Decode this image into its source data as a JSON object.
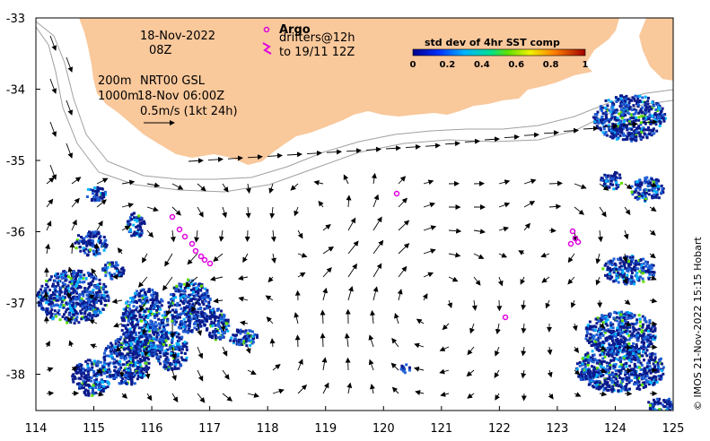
{
  "map": {
    "date_label": "18-Nov-2022",
    "time_label": "08Z",
    "depth_label_1": "200m",
    "depth_label_2": "1000m",
    "product_label": "NRT00 GSL",
    "product_time": "18-Nov 06:00Z",
    "scale_label": "0.5m/s (1kt 24h)",
    "argo_label": "Argo",
    "drifters_label": "drifters@12h",
    "drifters_to": "to 19/11 12Z",
    "colorbar_title": "std dev of 4hr SST comp",
    "colorbar_ticks": [
      "0",
      "0.2",
      "0.4",
      "0.6",
      "0.8",
      "1"
    ],
    "credit": "© IMOS 21-Nov-2022 15:15 Hobart",
    "lon_ticks": [
      "114",
      "115",
      "116",
      "117",
      "118",
      "119",
      "120",
      "121",
      "122",
      "123",
      "124",
      "125"
    ],
    "lat_ticks": [
      "-33",
      "-34",
      "-35",
      "-36",
      "-37",
      "-38"
    ],
    "colors": {
      "land": "#f9c89b",
      "ocean": "#ffffff",
      "sst_high": "#0a1a8c",
      "sst_mid": "#1f5fd6",
      "argo": "#e000e0",
      "isobath": "#a0a0a0"
    }
  }
}
